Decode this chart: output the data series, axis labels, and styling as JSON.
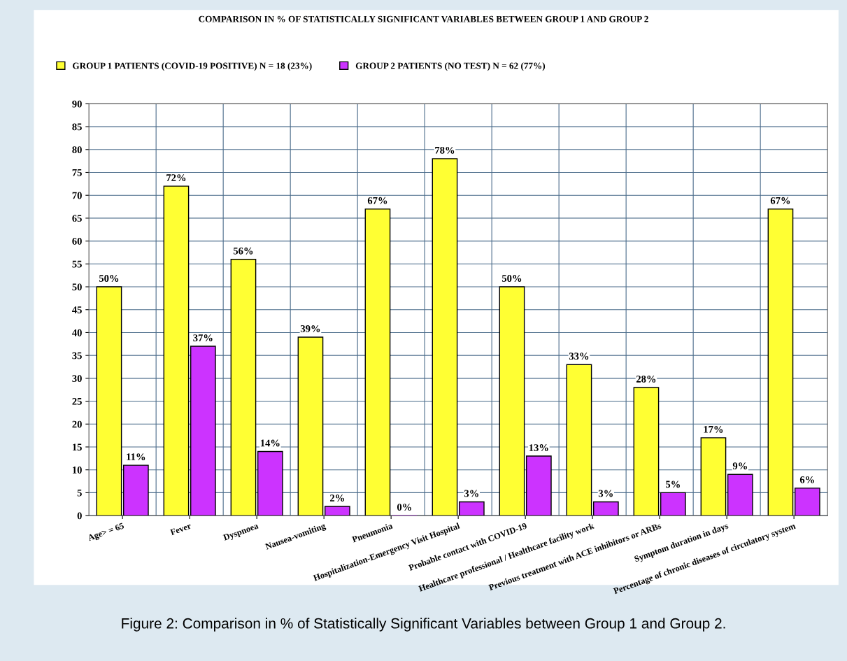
{
  "chart_data": {
    "type": "bar",
    "title": "COMPARISON IN % OF STATISTICALLY SIGNIFICANT VARIABLES BETWEEN GROUP 1 AND GROUP 2",
    "categories": [
      "Age> = 65",
      "Fever",
      "Dyspnoea",
      "Nausea-vomiting",
      "Pneumonia",
      "Hospitalization-Emergency Visit Hospital",
      "Probable contact with COVID-19",
      "Healthcare professional / Healthcare facility work",
      "Previous treatment with ACE inhibitors or ARBs",
      "Symptom duration in days",
      "Percentage of chronic diseases of circulatory system"
    ],
    "series": [
      {
        "name": "GROUP 1 PATIENTS (COVID-19 POSITIVE) N = 18 (23%)",
        "color": "#ffff33",
        "values": [
          50,
          72,
          56,
          39,
          67,
          78,
          50,
          33,
          28,
          17,
          67
        ],
        "value_labels": [
          "50%",
          "72%",
          "56%",
          "39%",
          "67%",
          "78%",
          "50%",
          "33%",
          "28%",
          "17%",
          "67%"
        ]
      },
      {
        "name": "GROUP 2 PATIENTS (NO TEST) N = 62 (77%)",
        "color": "#cc33ff",
        "values": [
          11,
          37,
          14,
          2,
          0,
          3,
          13,
          3,
          5,
          9,
          6
        ],
        "value_labels": [
          "11%",
          "37%",
          "14%",
          "2%",
          "0%",
          "3%",
          "13%",
          "3%",
          "5%",
          "9%",
          "6%"
        ]
      }
    ],
    "ylim": [
      0,
      90
    ],
    "yticks": [
      0,
      5,
      10,
      15,
      20,
      25,
      30,
      35,
      40,
      45,
      50,
      55,
      60,
      65,
      70,
      75,
      80,
      85,
      90
    ],
    "grid": true,
    "legend": "top left",
    "annotations": [
      "Figure 2: Comparison in % of Statistically Significant Variables between Group 1 and Group 2."
    ]
  }
}
